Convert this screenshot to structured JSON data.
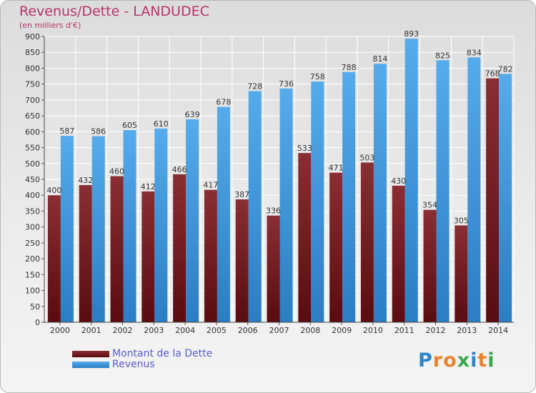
{
  "title": "Revenus/Dette - LANDUDEC",
  "subtitle": "(en milliers d'€)",
  "colors": {
    "dette": "#6e1a1e",
    "revenus": "#3a95df",
    "title": "#b5356b",
    "legend_text": "#5b5bd6"
  },
  "legend": {
    "dette_label": "Montant de la Dette",
    "revenus_label": "Revenus"
  },
  "brand": {
    "letters": [
      "P",
      "r",
      "o",
      "x",
      "i",
      "t",
      "i"
    ],
    "colors": [
      "#2e86c9",
      "#e8842c",
      "#e8842c",
      "#3aa84a",
      "#2e86c9",
      "#e8842c",
      "#3aa84a"
    ]
  },
  "chart_data": {
    "type": "bar",
    "categories": [
      "2000",
      "2001",
      "2002",
      "2003",
      "2004",
      "2005",
      "2006",
      "2007",
      "2008",
      "2009",
      "2010",
      "2011",
      "2012",
      "2013",
      "2014"
    ],
    "series": [
      {
        "name": "Montant de la Dette",
        "values": [
          400,
          432,
          460,
          412,
          466,
          417,
          387,
          336,
          533,
          471,
          503,
          430,
          354,
          305,
          768
        ]
      },
      {
        "name": "Revenus",
        "values": [
          587,
          586,
          605,
          610,
          639,
          678,
          728,
          736,
          758,
          788,
          814,
          893,
          825,
          834,
          782
        ]
      }
    ],
    "ylim": [
      0,
      900
    ],
    "yticks": [
      0,
      50,
      100,
      150,
      200,
      250,
      300,
      350,
      400,
      450,
      500,
      550,
      600,
      650,
      700,
      750,
      800,
      850,
      900
    ],
    "grid": true
  }
}
